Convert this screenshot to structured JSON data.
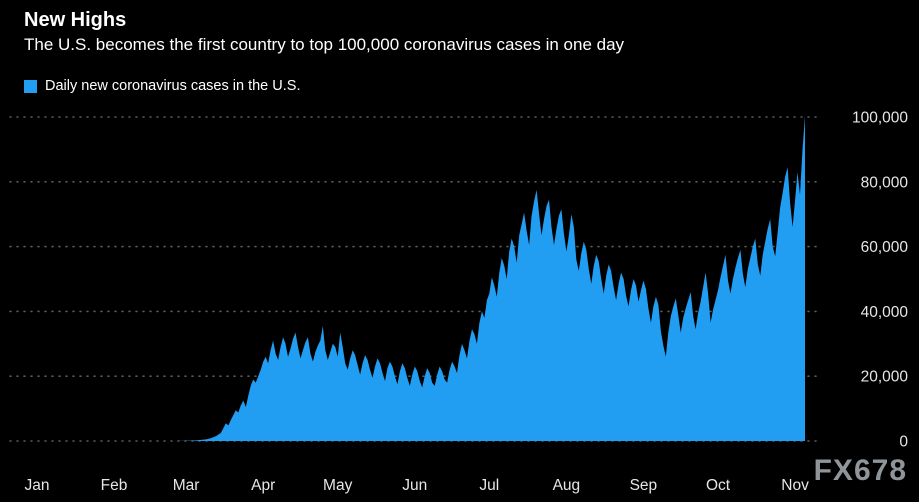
{
  "header": {
    "title": "New Highs",
    "subtitle": "The U.S. becomes the first country to top 100,000 coronavirus cases in one day"
  },
  "legend": {
    "label": "Daily new coronavirus cases in the U.S."
  },
  "watermark": {
    "text": "FX678"
  },
  "chart_data": {
    "type": "area",
    "title": "New Highs",
    "subtitle": "The U.S. becomes the first country to top 100,000 coronavirus cases in one day",
    "xlabel": "",
    "ylabel": "Daily new coronavirus cases",
    "x_unit": "day index from Jan 1, 2020",
    "xlim": [
      0,
      309
    ],
    "ylim": [
      0,
      100000
    ],
    "grid": true,
    "y_axis_side": "right",
    "legend_position": "top-left",
    "colors": {
      "background": "#000000",
      "area": "#219df2",
      "grid": "#5a5a5a",
      "tick_text": "#e6e6e6",
      "text": "#ffffff",
      "watermark": "#90959a"
    },
    "xticks": [
      {
        "day": 0,
        "label": "Jan"
      },
      {
        "day": 31,
        "label": "Feb"
      },
      {
        "day": 60,
        "label": "Mar"
      },
      {
        "day": 91,
        "label": "Apr"
      },
      {
        "day": 121,
        "label": "May"
      },
      {
        "day": 152,
        "label": "Jun"
      },
      {
        "day": 182,
        "label": "Jul"
      },
      {
        "day": 213,
        "label": "Aug"
      },
      {
        "day": 244,
        "label": "Sep"
      },
      {
        "day": 274,
        "label": "Oct"
      },
      {
        "day": 305,
        "label": "Nov"
      }
    ],
    "yticks": [
      {
        "value": 0,
        "label": "0"
      },
      {
        "value": 20000,
        "label": "20,000"
      },
      {
        "value": 40000,
        "label": "40,000"
      },
      {
        "value": 60000,
        "label": "60,000"
      },
      {
        "value": 80000,
        "label": "80,000"
      },
      {
        "value": 100000,
        "label": "100,000"
      }
    ],
    "series": [
      {
        "name": "Daily new coronavirus cases in the U.S.",
        "points": [
          [
            0,
            0
          ],
          [
            20,
            0
          ],
          [
            40,
            0
          ],
          [
            55,
            0
          ],
          [
            60,
            100
          ],
          [
            64,
            200
          ],
          [
            68,
            500
          ],
          [
            70,
            900
          ],
          [
            72,
            1500
          ],
          [
            74,
            2500
          ],
          [
            75,
            4000
          ],
          [
            76,
            5500
          ],
          [
            77,
            4800
          ],
          [
            78,
            6500
          ],
          [
            79,
            8000
          ],
          [
            80,
            9500
          ],
          [
            81,
            8800
          ],
          [
            82,
            11000
          ],
          [
            83,
            12500
          ],
          [
            84,
            10500
          ],
          [
            85,
            14000
          ],
          [
            86,
            17000
          ],
          [
            87,
            19000
          ],
          [
            88,
            18000
          ],
          [
            89,
            20000
          ],
          [
            90,
            22000
          ],
          [
            91,
            24500
          ],
          [
            92,
            26000
          ],
          [
            93,
            24000
          ],
          [
            94,
            28000
          ],
          [
            95,
            31000
          ],
          [
            96,
            27000
          ],
          [
            97,
            25000
          ],
          [
            98,
            29000
          ],
          [
            99,
            32000
          ],
          [
            100,
            30000
          ],
          [
            101,
            26000
          ],
          [
            102,
            28500
          ],
          [
            103,
            31500
          ],
          [
            104,
            33500
          ],
          [
            105,
            29000
          ],
          [
            106,
            25500
          ],
          [
            107,
            28000
          ],
          [
            108,
            30500
          ],
          [
            109,
            32000
          ],
          [
            110,
            27000
          ],
          [
            111,
            24500
          ],
          [
            112,
            27500
          ],
          [
            113,
            29500
          ],
          [
            114,
            31000
          ],
          [
            115,
            35500
          ],
          [
            116,
            28000
          ],
          [
            117,
            25000
          ],
          [
            118,
            27500
          ],
          [
            119,
            30000
          ],
          [
            120,
            29000
          ],
          [
            121,
            26000
          ],
          [
            122,
            33500
          ],
          [
            123,
            29000
          ],
          [
            124,
            24000
          ],
          [
            125,
            22000
          ],
          [
            126,
            25500
          ],
          [
            127,
            28000
          ],
          [
            128,
            26500
          ],
          [
            129,
            23500
          ],
          [
            130,
            20500
          ],
          [
            131,
            24000
          ],
          [
            132,
            26500
          ],
          [
            133,
            25000
          ],
          [
            134,
            22000
          ],
          [
            135,
            19500
          ],
          [
            136,
            23000
          ],
          [
            137,
            25500
          ],
          [
            138,
            24000
          ],
          [
            139,
            21000
          ],
          [
            140,
            18500
          ],
          [
            141,
            22500
          ],
          [
            142,
            24500
          ],
          [
            143,
            23000
          ],
          [
            144,
            20000
          ],
          [
            145,
            17500
          ],
          [
            146,
            21500
          ],
          [
            147,
            24000
          ],
          [
            148,
            22500
          ],
          [
            149,
            19500
          ],
          [
            150,
            17000
          ],
          [
            151,
            20500
          ],
          [
            152,
            23000
          ],
          [
            153,
            21500
          ],
          [
            154,
            18500
          ],
          [
            155,
            16500
          ],
          [
            156,
            20000
          ],
          [
            157,
            22500
          ],
          [
            158,
            21000
          ],
          [
            159,
            18000
          ],
          [
            160,
            17000
          ],
          [
            161,
            20500
          ],
          [
            162,
            23000
          ],
          [
            163,
            21500
          ],
          [
            164,
            19000
          ],
          [
            165,
            18000
          ],
          [
            166,
            22000
          ],
          [
            167,
            24500
          ],
          [
            168,
            23000
          ],
          [
            169,
            21000
          ],
          [
            170,
            26500
          ],
          [
            171,
            30000
          ],
          [
            172,
            28000
          ],
          [
            173,
            25500
          ],
          [
            174,
            31000
          ],
          [
            175,
            34500
          ],
          [
            176,
            33000
          ],
          [
            177,
            30000
          ],
          [
            178,
            36500
          ],
          [
            179,
            40000
          ],
          [
            180,
            38000
          ],
          [
            181,
            43500
          ],
          [
            182,
            45500
          ],
          [
            183,
            50500
          ],
          [
            184,
            48000
          ],
          [
            185,
            44500
          ],
          [
            186,
            52000
          ],
          [
            187,
            56500
          ],
          [
            188,
            54000
          ],
          [
            189,
            50000
          ],
          [
            190,
            58500
          ],
          [
            191,
            62500
          ],
          [
            192,
            60000
          ],
          [
            193,
            55000
          ],
          [
            194,
            63500
          ],
          [
            195,
            67000
          ],
          [
            196,
            70500
          ],
          [
            197,
            65000
          ],
          [
            198,
            60500
          ],
          [
            199,
            69500
          ],
          [
            200,
            74000
          ],
          [
            201,
            77500
          ],
          [
            202,
            70000
          ],
          [
            203,
            63500
          ],
          [
            204,
            68500
          ],
          [
            205,
            72500
          ],
          [
            206,
            74500
          ],
          [
            207,
            66000
          ],
          [
            208,
            60500
          ],
          [
            209,
            65500
          ],
          [
            210,
            69500
          ],
          [
            211,
            71500
          ],
          [
            212,
            64000
          ],
          [
            213,
            58500
          ],
          [
            214,
            63500
          ],
          [
            215,
            70000
          ],
          [
            216,
            66000
          ],
          [
            217,
            56000
          ],
          [
            218,
            52500
          ],
          [
            219,
            58000
          ],
          [
            220,
            61500
          ],
          [
            221,
            59000
          ],
          [
            222,
            53000
          ],
          [
            223,
            48500
          ],
          [
            224,
            54000
          ],
          [
            225,
            57500
          ],
          [
            226,
            55500
          ],
          [
            227,
            50000
          ],
          [
            228,
            45500
          ],
          [
            229,
            51000
          ],
          [
            230,
            54500
          ],
          [
            231,
            52500
          ],
          [
            232,
            47500
          ],
          [
            233,
            43500
          ],
          [
            234,
            48500
          ],
          [
            235,
            52000
          ],
          [
            236,
            50000
          ],
          [
            237,
            45000
          ],
          [
            238,
            41500
          ],
          [
            239,
            46500
          ],
          [
            240,
            50000
          ],
          [
            241,
            48000
          ],
          [
            242,
            43000
          ],
          [
            243,
            46500
          ],
          [
            244,
            49500
          ],
          [
            245,
            47000
          ],
          [
            246,
            41000
          ],
          [
            247,
            36500
          ],
          [
            248,
            41500
          ],
          [
            249,
            44500
          ],
          [
            250,
            42000
          ],
          [
            251,
            34000
          ],
          [
            252,
            29500
          ],
          [
            253,
            26000
          ],
          [
            254,
            33500
          ],
          [
            255,
            38500
          ],
          [
            256,
            41500
          ],
          [
            257,
            44000
          ],
          [
            258,
            39000
          ],
          [
            259,
            33500
          ],
          [
            260,
            38000
          ],
          [
            261,
            41000
          ],
          [
            262,
            43500
          ],
          [
            263,
            46000
          ],
          [
            264,
            38500
          ],
          [
            265,
            34500
          ],
          [
            266,
            39500
          ],
          [
            267,
            43000
          ],
          [
            268,
            47500
          ],
          [
            269,
            52000
          ],
          [
            270,
            45500
          ],
          [
            271,
            36500
          ],
          [
            272,
            40500
          ],
          [
            273,
            43500
          ],
          [
            274,
            46500
          ],
          [
            275,
            50500
          ],
          [
            276,
            54000
          ],
          [
            277,
            57500
          ],
          [
            278,
            49500
          ],
          [
            279,
            45500
          ],
          [
            280,
            50000
          ],
          [
            281,
            53500
          ],
          [
            282,
            56500
          ],
          [
            283,
            59000
          ],
          [
            284,
            51500
          ],
          [
            285,
            47500
          ],
          [
            286,
            53000
          ],
          [
            287,
            56500
          ],
          [
            288,
            60000
          ],
          [
            289,
            62500
          ],
          [
            290,
            54500
          ],
          [
            291,
            51000
          ],
          [
            292,
            57500
          ],
          [
            293,
            61500
          ],
          [
            294,
            65500
          ],
          [
            295,
            68500
          ],
          [
            296,
            60000
          ],
          [
            297,
            57000
          ],
          [
            298,
            64500
          ],
          [
            299,
            72000
          ],
          [
            300,
            76500
          ],
          [
            301,
            81500
          ],
          [
            302,
            84500
          ],
          [
            303,
            73500
          ],
          [
            304,
            66000
          ],
          [
            305,
            74500
          ],
          [
            306,
            83000
          ],
          [
            307,
            76000
          ],
          [
            308,
            90000
          ],
          [
            309,
            100300
          ]
        ]
      }
    ]
  }
}
